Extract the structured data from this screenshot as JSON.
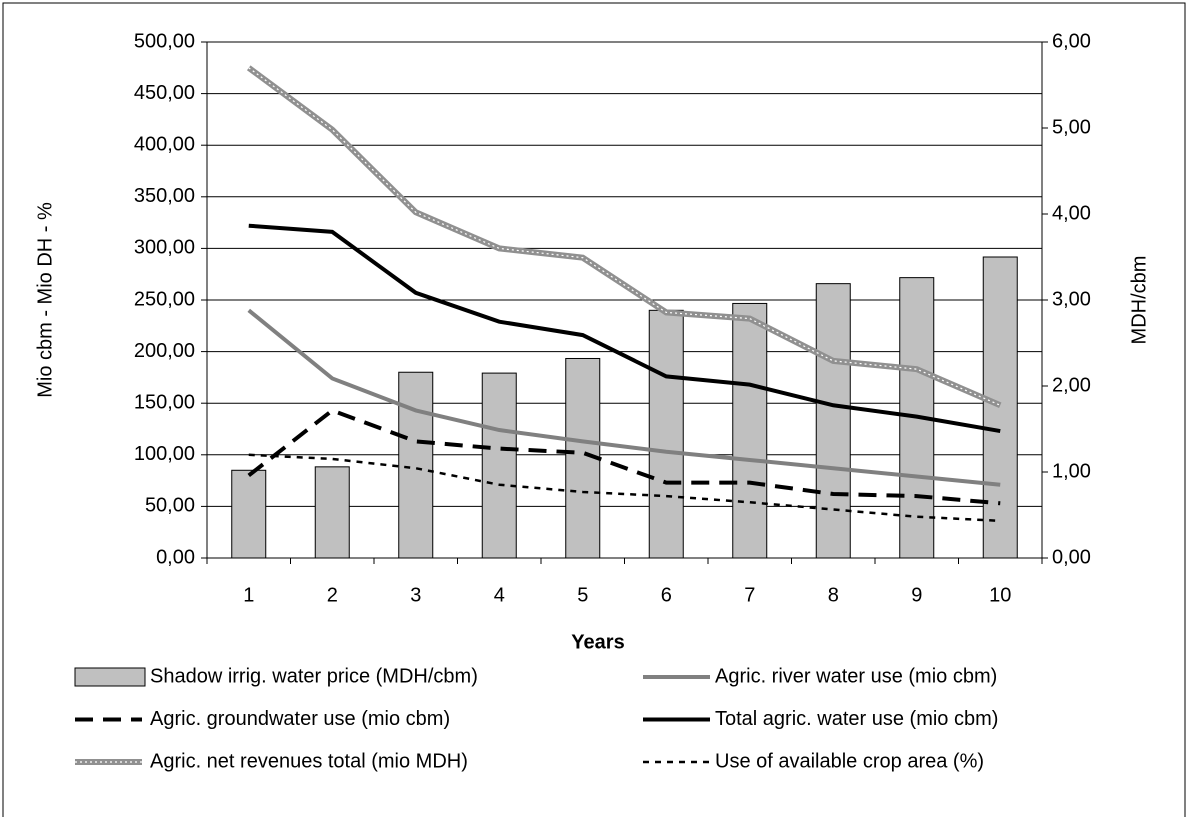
{
  "chart_data": {
    "type": "bar-line",
    "xlabel": "Years",
    "ylabel": "Mio cbm - Mio DH - %",
    "y2label": "MDH/cbm",
    "categories": [
      "1",
      "2",
      "3",
      "4",
      "5",
      "6",
      "7",
      "8",
      "9",
      "10"
    ],
    "ylim": [
      0,
      500
    ],
    "yticks": [
      {
        "value": 0,
        "label": "0,00"
      },
      {
        "value": 50,
        "label": "50,00"
      },
      {
        "value": 100,
        "label": "100,00"
      },
      {
        "value": 150,
        "label": "150,00"
      },
      {
        "value": 200,
        "label": "200,00"
      },
      {
        "value": 250,
        "label": "250,00"
      },
      {
        "value": 300,
        "label": "300,00"
      },
      {
        "value": 350,
        "label": "350,00"
      },
      {
        "value": 400,
        "label": "400,00"
      },
      {
        "value": 450,
        "label": "450,00"
      },
      {
        "value": 500,
        "label": "500,00"
      }
    ],
    "y2lim": [
      0,
      6
    ],
    "y2ticks": [
      {
        "value": 0,
        "label": "0,00"
      },
      {
        "value": 1,
        "label": "1,00"
      },
      {
        "value": 2,
        "label": "2,00"
      },
      {
        "value": 3,
        "label": "3,00"
      },
      {
        "value": 4,
        "label": "4,00"
      },
      {
        "value": 5,
        "label": "5,00"
      },
      {
        "value": 6,
        "label": "6,00"
      }
    ],
    "grid": true,
    "legend": "bottom",
    "series": [
      {
        "name": "Shadow irrig. water price (MDH/cbm)",
        "type": "bar",
        "axis": "y2",
        "color": "#c0c0c0",
        "values": [
          1.02,
          1.06,
          2.16,
          2.15,
          2.32,
          2.88,
          2.96,
          3.19,
          3.26,
          3.5
        ]
      },
      {
        "name": "Agric. river water use (mio cbm)",
        "type": "line",
        "style": "solid",
        "color": "#808080",
        "values": [
          240,
          174,
          143,
          124,
          113,
          103,
          95,
          87,
          79,
          71
        ]
      },
      {
        "name": "Agric. groundwater use (mio cbm)",
        "type": "line",
        "style": "dashed",
        "color": "#000000",
        "values": [
          80,
          143,
          113,
          106,
          102,
          73,
          73,
          62,
          60,
          53
        ]
      },
      {
        "name": "Total agric. water use (mio cbm)",
        "type": "line",
        "style": "solid",
        "color": "#000000",
        "values": [
          322,
          316,
          257,
          229,
          216,
          176,
          168,
          148,
          137,
          123
        ]
      },
      {
        "name": "Agric. net revenues total (mio MDH)",
        "type": "line",
        "style": "textured",
        "color": "#909090",
        "values": [
          475,
          415,
          335,
          300,
          291,
          238,
          232,
          191,
          183,
          148
        ]
      },
      {
        "name": "Use of available crop area (%)",
        "type": "line",
        "style": "dotted",
        "color": "#000000",
        "values": [
          100,
          96,
          87,
          71,
          64,
          60,
          54,
          47,
          40,
          36
        ]
      }
    ]
  }
}
